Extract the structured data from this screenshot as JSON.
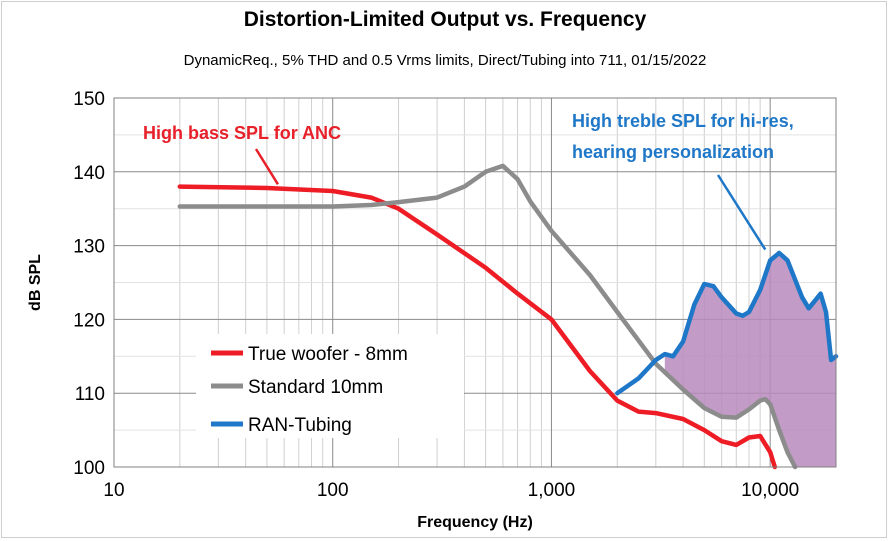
{
  "chart_data": {
    "type": "line",
    "title": "Distortion-Limited  Output vs. Frequency",
    "subtitle": "DynamicReq., 5% THD and 0.5 Vrms limits, Direct/Tubing into 711, 01/15/2022",
    "xlabel": "Frequency  (Hz)",
    "ylabel": "dB SPL",
    "xscale": "log",
    "xlim": [
      10,
      20000
    ],
    "ylim": [
      100,
      150
    ],
    "grid": true,
    "legend_position": "bottom-left",
    "x_ticks": [
      {
        "value": 10,
        "label": "10"
      },
      {
        "value": 100,
        "label": "100"
      },
      {
        "value": 1000,
        "label": "1,000"
      },
      {
        "value": 10000,
        "label": "10,000"
      }
    ],
    "y_ticks": [
      {
        "value": 100,
        "label": "100"
      },
      {
        "value": 110,
        "label": "110"
      },
      {
        "value": 120,
        "label": "120"
      },
      {
        "value": 130,
        "label": "130"
      },
      {
        "value": 140,
        "label": "140"
      },
      {
        "value": 150,
        "label": "150"
      }
    ],
    "series": [
      {
        "name": "True woofer - 8mm",
        "color": "#ee1c25",
        "points": [
          [
            20,
            138
          ],
          [
            50,
            137.8
          ],
          [
            100,
            137.4
          ],
          [
            150,
            136.5
          ],
          [
            200,
            135
          ],
          [
            300,
            131.5
          ],
          [
            500,
            127
          ],
          [
            700,
            123.5
          ],
          [
            1000,
            120
          ],
          [
            1500,
            113
          ],
          [
            2000,
            109
          ],
          [
            2500,
            107.5
          ],
          [
            3000,
            107.3
          ],
          [
            4000,
            106.5
          ],
          [
            5000,
            105
          ],
          [
            6000,
            103.5
          ],
          [
            7000,
            103
          ],
          [
            8000,
            104
          ],
          [
            9000,
            104.2
          ],
          [
            10000,
            102
          ],
          [
            10500,
            100
          ]
        ]
      },
      {
        "name": "Standard 10mm",
        "color": "#8c8c8c",
        "points": [
          [
            20,
            135.3
          ],
          [
            50,
            135.3
          ],
          [
            100,
            135.3
          ],
          [
            150,
            135.5
          ],
          [
            200,
            135.9
          ],
          [
            300,
            136.5
          ],
          [
            400,
            138
          ],
          [
            500,
            140
          ],
          [
            600,
            140.8
          ],
          [
            700,
            139
          ],
          [
            800,
            136
          ],
          [
            1000,
            132
          ],
          [
            1500,
            126
          ],
          [
            2000,
            121
          ],
          [
            3000,
            114
          ],
          [
            4000,
            110.5
          ],
          [
            5000,
            108
          ],
          [
            6000,
            106.8
          ],
          [
            7000,
            106.7
          ],
          [
            8000,
            107.8
          ],
          [
            9000,
            109
          ],
          [
            9500,
            109.2
          ],
          [
            10000,
            108.5
          ],
          [
            11000,
            105
          ],
          [
            12000,
            102
          ],
          [
            13000,
            100
          ]
        ]
      },
      {
        "name": "RAN-Tubing",
        "color": "#1f77c8",
        "points": [
          [
            2000,
            110
          ],
          [
            2500,
            112
          ],
          [
            3000,
            114.5
          ],
          [
            3300,
            115.3
          ],
          [
            3600,
            115
          ],
          [
            4000,
            117
          ],
          [
            4500,
            122
          ],
          [
            5000,
            124.8
          ],
          [
            5500,
            124.5
          ],
          [
            6000,
            123
          ],
          [
            7000,
            120.8
          ],
          [
            7500,
            120.5
          ],
          [
            8000,
            121
          ],
          [
            9000,
            124
          ],
          [
            10000,
            128
          ],
          [
            11000,
            129
          ],
          [
            12000,
            128
          ],
          [
            14000,
            123
          ],
          [
            15000,
            121.5
          ],
          [
            16000,
            122.5
          ],
          [
            17000,
            123.5
          ],
          [
            18000,
            121
          ],
          [
            19000,
            114.5
          ],
          [
            20000,
            115
          ]
        ]
      }
    ],
    "shaded_region": {
      "color": "#b98abd",
      "upper_series": "RAN-Tubing",
      "lower_series": "Standard 10mm",
      "x_range": [
        3300,
        20000
      ]
    },
    "annotations": [
      {
        "text": "High bass SPL for ANC",
        "color": "#e8202a",
        "target": [
          55,
          137.9
        ]
      },
      {
        "text": "High treble SPL for hi-res,",
        "color": "#1f77c8",
        "target": [
          9500,
          130
        ]
      },
      {
        "text": "hearing personalization",
        "color": "#1f77c8"
      }
    ]
  }
}
